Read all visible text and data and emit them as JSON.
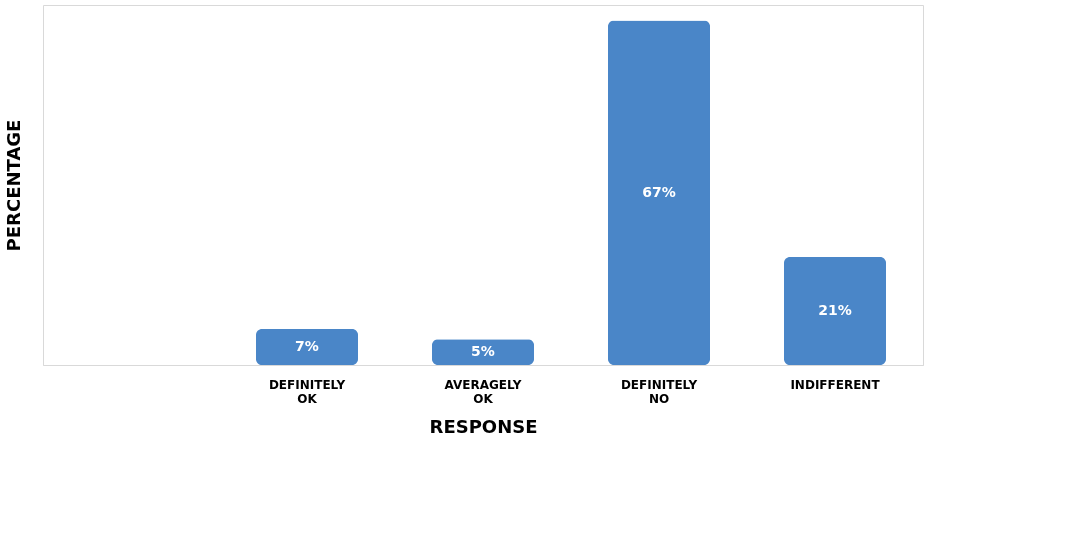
{
  "chart_data": {
    "type": "bar",
    "xlabel": "RESPONSE",
    "ylabel": "PERCENTAGE",
    "categories": [
      null,
      "DEFINITELY OK",
      "AVERAGELY OK",
      "DEFINITELY NO",
      "INDIFFERENT"
    ],
    "values": [
      null,
      7,
      5,
      67,
      21
    ],
    "value_labels": [
      null,
      "7%",
      "5%",
      "67%",
      "21%"
    ],
    "color": "#4a86c8",
    "tick_labels": "x",
    "grid": false
  }
}
